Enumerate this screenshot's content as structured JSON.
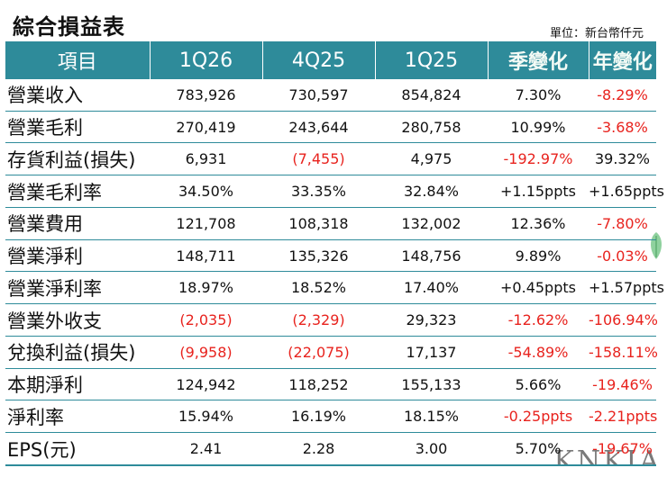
{
  "title": "綜合損益表",
  "unit": "單位：新台幣仟元",
  "headers": [
    "項目",
    "1Q26",
    "4Q25",
    "1Q25",
    "季變化",
    "年變化"
  ],
  "rows": [
    {
      "label": "營業收入",
      "cells": [
        {
          "v": "783,926",
          "neg": false
        },
        {
          "v": "730,597",
          "neg": false
        },
        {
          "v": "854,824",
          "neg": false
        },
        {
          "v": "7.30%",
          "neg": false
        },
        {
          "v": "-8.29%",
          "neg": true
        }
      ]
    },
    {
      "label": "營業毛利",
      "cells": [
        {
          "v": "270,419",
          "neg": false
        },
        {
          "v": "243,644",
          "neg": false
        },
        {
          "v": "280,758",
          "neg": false
        },
        {
          "v": "10.99%",
          "neg": false
        },
        {
          "v": "-3.68%",
          "neg": true
        }
      ]
    },
    {
      "label": "存貨利益(損失)",
      "cells": [
        {
          "v": "6,931",
          "neg": false
        },
        {
          "v": "(7,455)",
          "neg": true
        },
        {
          "v": "4,975",
          "neg": false
        },
        {
          "v": "-192.97%",
          "neg": true
        },
        {
          "v": "39.32%",
          "neg": false
        }
      ]
    },
    {
      "label": "營業毛利率",
      "cells": [
        {
          "v": "34.50%",
          "neg": false
        },
        {
          "v": "33.35%",
          "neg": false
        },
        {
          "v": "32.84%",
          "neg": false
        },
        {
          "v": "+1.15ppts",
          "neg": false
        },
        {
          "v": "+1.65ppts",
          "neg": false
        }
      ]
    },
    {
      "label": "營業費用",
      "cells": [
        {
          "v": "121,708",
          "neg": false
        },
        {
          "v": "108,318",
          "neg": false
        },
        {
          "v": "132,002",
          "neg": false
        },
        {
          "v": "12.36%",
          "neg": false
        },
        {
          "v": "-7.80%",
          "neg": true
        }
      ]
    },
    {
      "label": "營業淨利",
      "cells": [
        {
          "v": "148,711",
          "neg": false
        },
        {
          "v": "135,326",
          "neg": false
        },
        {
          "v": "148,756",
          "neg": false
        },
        {
          "v": "9.89%",
          "neg": false
        },
        {
          "v": "-0.03%",
          "neg": true
        }
      ]
    },
    {
      "label": "營業淨利率",
      "cells": [
        {
          "v": "18.97%",
          "neg": false
        },
        {
          "v": "18.52%",
          "neg": false
        },
        {
          "v": "17.40%",
          "neg": false
        },
        {
          "v": "+0.45ppts",
          "neg": false
        },
        {
          "v": "+1.57ppts",
          "neg": false
        }
      ]
    },
    {
      "label": "營業外收支",
      "cells": [
        {
          "v": "(2,035)",
          "neg": true
        },
        {
          "v": "(2,329)",
          "neg": true
        },
        {
          "v": "29,323",
          "neg": false
        },
        {
          "v": "-12.62%",
          "neg": true
        },
        {
          "v": "-106.94%",
          "neg": true
        }
      ]
    },
    {
      "label": "兌換利益(損失)",
      "cells": [
        {
          "v": "(9,958)",
          "neg": true
        },
        {
          "v": "(22,075)",
          "neg": true
        },
        {
          "v": "17,137",
          "neg": false
        },
        {
          "v": "-54.89%",
          "neg": true
        },
        {
          "v": "-158.11%",
          "neg": true
        }
      ]
    },
    {
      "label": "本期淨利",
      "cells": [
        {
          "v": "124,942",
          "neg": false
        },
        {
          "v": "118,252",
          "neg": false
        },
        {
          "v": "155,133",
          "neg": false
        },
        {
          "v": "5.66%",
          "neg": false
        },
        {
          "v": "-19.46%",
          "neg": true
        }
      ]
    },
    {
      "label": "淨利率",
      "cells": [
        {
          "v": "15.94%",
          "neg": false
        },
        {
          "v": "16.19%",
          "neg": false
        },
        {
          "v": "18.15%",
          "neg": false
        },
        {
          "v": "-0.25ppts",
          "neg": true
        },
        {
          "v": "-2.21ppts",
          "neg": true
        }
      ]
    },
    {
      "label": "EPS(元)",
      "cells": [
        {
          "v": "2.41",
          "neg": false
        },
        {
          "v": "2.28",
          "neg": false
        },
        {
          "v": "3.00",
          "neg": false
        },
        {
          "v": "5.70%",
          "neg": false
        },
        {
          "v": "-19.67%",
          "neg": true
        }
      ]
    }
  ],
  "colors": {
    "header_bg": "#2e8b9a",
    "negative": "#e8231e",
    "text": "#111111"
  },
  "decor": {
    "leaf_icon": "leaf-icon"
  }
}
